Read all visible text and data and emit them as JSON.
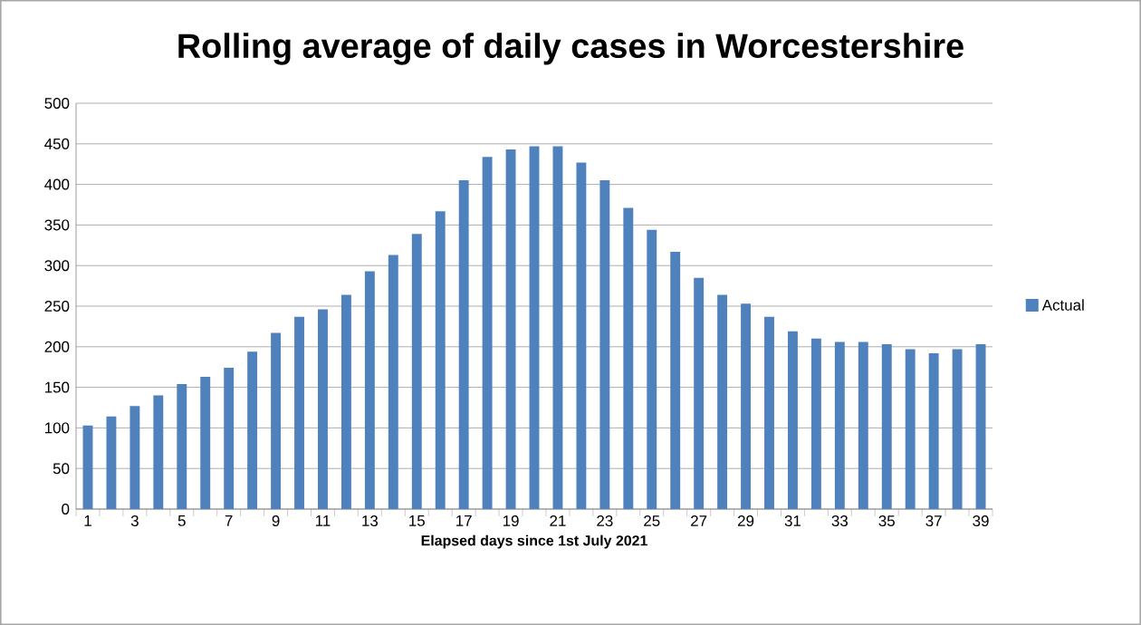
{
  "chart_data": {
    "type": "bar",
    "title": "Rolling average of daily cases in Worcestershire",
    "xlabel": "Elapsed days since 1st July 2021",
    "categories": [
      "1",
      null,
      "3",
      null,
      "5",
      null,
      "7",
      null,
      "9",
      null,
      "11",
      null,
      "13",
      null,
      "15",
      null,
      "17",
      null,
      "19",
      null,
      "21",
      null,
      "23",
      null,
      "25",
      null,
      "27",
      null,
      "29",
      null,
      "31",
      null,
      "33",
      null,
      "35",
      null,
      "37",
      null,
      "39"
    ],
    "series": [
      {
        "name": "Actual",
        "color": "#4f81bd",
        "values": [
          103,
          114,
          127,
          140,
          154,
          163,
          174,
          194,
          217,
          237,
          246,
          264,
          293,
          313,
          339,
          367,
          405,
          434,
          443,
          447,
          447,
          427,
          405,
          371,
          344,
          317,
          285,
          264,
          253,
          237,
          219,
          210,
          206,
          206,
          203,
          197,
          192,
          197,
          203
        ]
      }
    ],
    "ylim": [
      0,
      500
    ],
    "yticks": [
      0,
      50,
      100,
      150,
      200,
      250,
      300,
      350,
      400,
      450,
      500
    ],
    "grid": "y",
    "legend": "right"
  }
}
